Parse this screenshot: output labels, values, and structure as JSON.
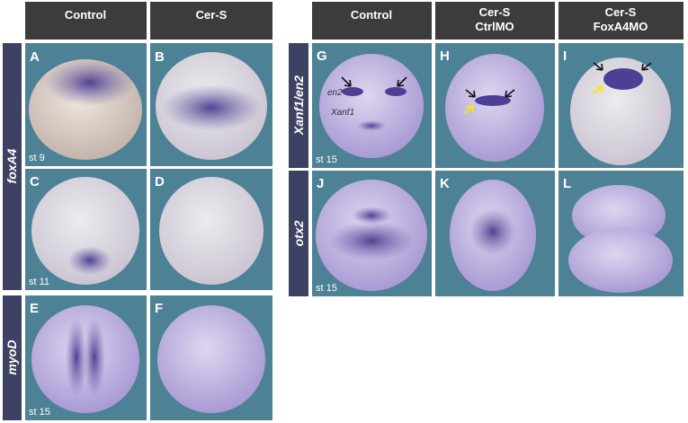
{
  "headers": {
    "left": [
      "Control",
      "Cer-S"
    ],
    "right": [
      [
        "Control"
      ],
      [
        "Cer-S",
        "CtrlMO"
      ],
      [
        "Cer-S",
        "FoxA4MO"
      ]
    ]
  },
  "row_labels": [
    "foxA4",
    "myoD",
    "Xanf1/en2",
    "otx2"
  ],
  "panels": [
    {
      "letter": "A",
      "stage": "st 9"
    },
    {
      "letter": "B"
    },
    {
      "letter": "C",
      "stage": "st 11"
    },
    {
      "letter": "D"
    },
    {
      "letter": "E",
      "stage": "st 15"
    },
    {
      "letter": "F"
    },
    {
      "letter": "G",
      "stage": "st 15"
    },
    {
      "letter": "H"
    },
    {
      "letter": "I"
    },
    {
      "letter": "J",
      "stage": "st 15"
    },
    {
      "letter": "K"
    },
    {
      "letter": "L"
    }
  ],
  "annotations": [
    "en2",
    "Xanf1"
  ]
}
